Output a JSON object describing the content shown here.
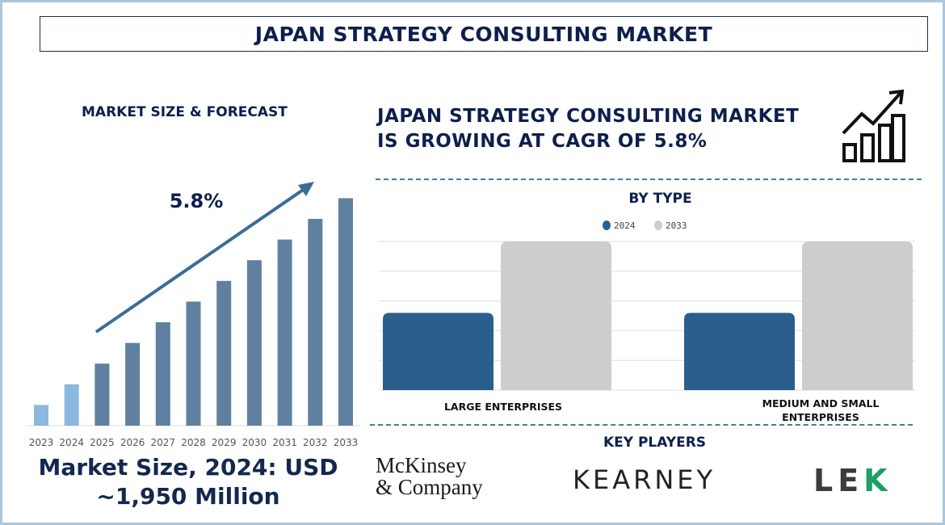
{
  "title": "JAPAN STRATEGY CONSULTING MARKET",
  "left": {
    "heading": "MARKET SIZE & FORECAST",
    "cagr_label": "5.8%",
    "market_size_line1": "Market Size, 2024: USD",
    "market_size_line2": "~1,950 Million"
  },
  "right": {
    "headline_line1": "JAPAN STRATEGY CONSULTING MARKET",
    "headline_line2": "IS GROWING AT CAGR OF 5.8%",
    "growth_icon": "bar-chart-growth-icon",
    "key_players_heading": "KEY PLAYERS",
    "key_players": [
      "McKinsey & Company",
      "KEARNEY",
      "LEK"
    ]
  },
  "chart_data": [
    {
      "type": "bar",
      "title": "",
      "categories": [
        "2023",
        "2024",
        "2025",
        "2026",
        "2027",
        "2028",
        "2029",
        "2030",
        "2031",
        "2032",
        "2033"
      ],
      "values": [
        1,
        2,
        3,
        4,
        5,
        6,
        7,
        8,
        9,
        10,
        11
      ],
      "value_note_units": "relative (no axis values shown)",
      "colors": {
        "historical": "#8bb8de",
        "forecast": "#5f80a0"
      },
      "historical_categories": [
        "2023",
        "2024"
      ],
      "annotation": "5.8%",
      "grid": false
    },
    {
      "type": "bar",
      "title": "BY TYPE",
      "categories": [
        "LARGE ENTERPRISES",
        "MEDIUM AND SMALL ENTERPRISES"
      ],
      "series": [
        {
          "name": "2024",
          "values": [
            2.6,
            2.6
          ],
          "color": "#2a5f8c"
        },
        {
          "name": "2033",
          "values": [
            5,
            5
          ],
          "color": "#cdcdcd"
        }
      ],
      "ylim": [
        0,
        5
      ],
      "grid": true,
      "legend": "top-center"
    }
  ]
}
